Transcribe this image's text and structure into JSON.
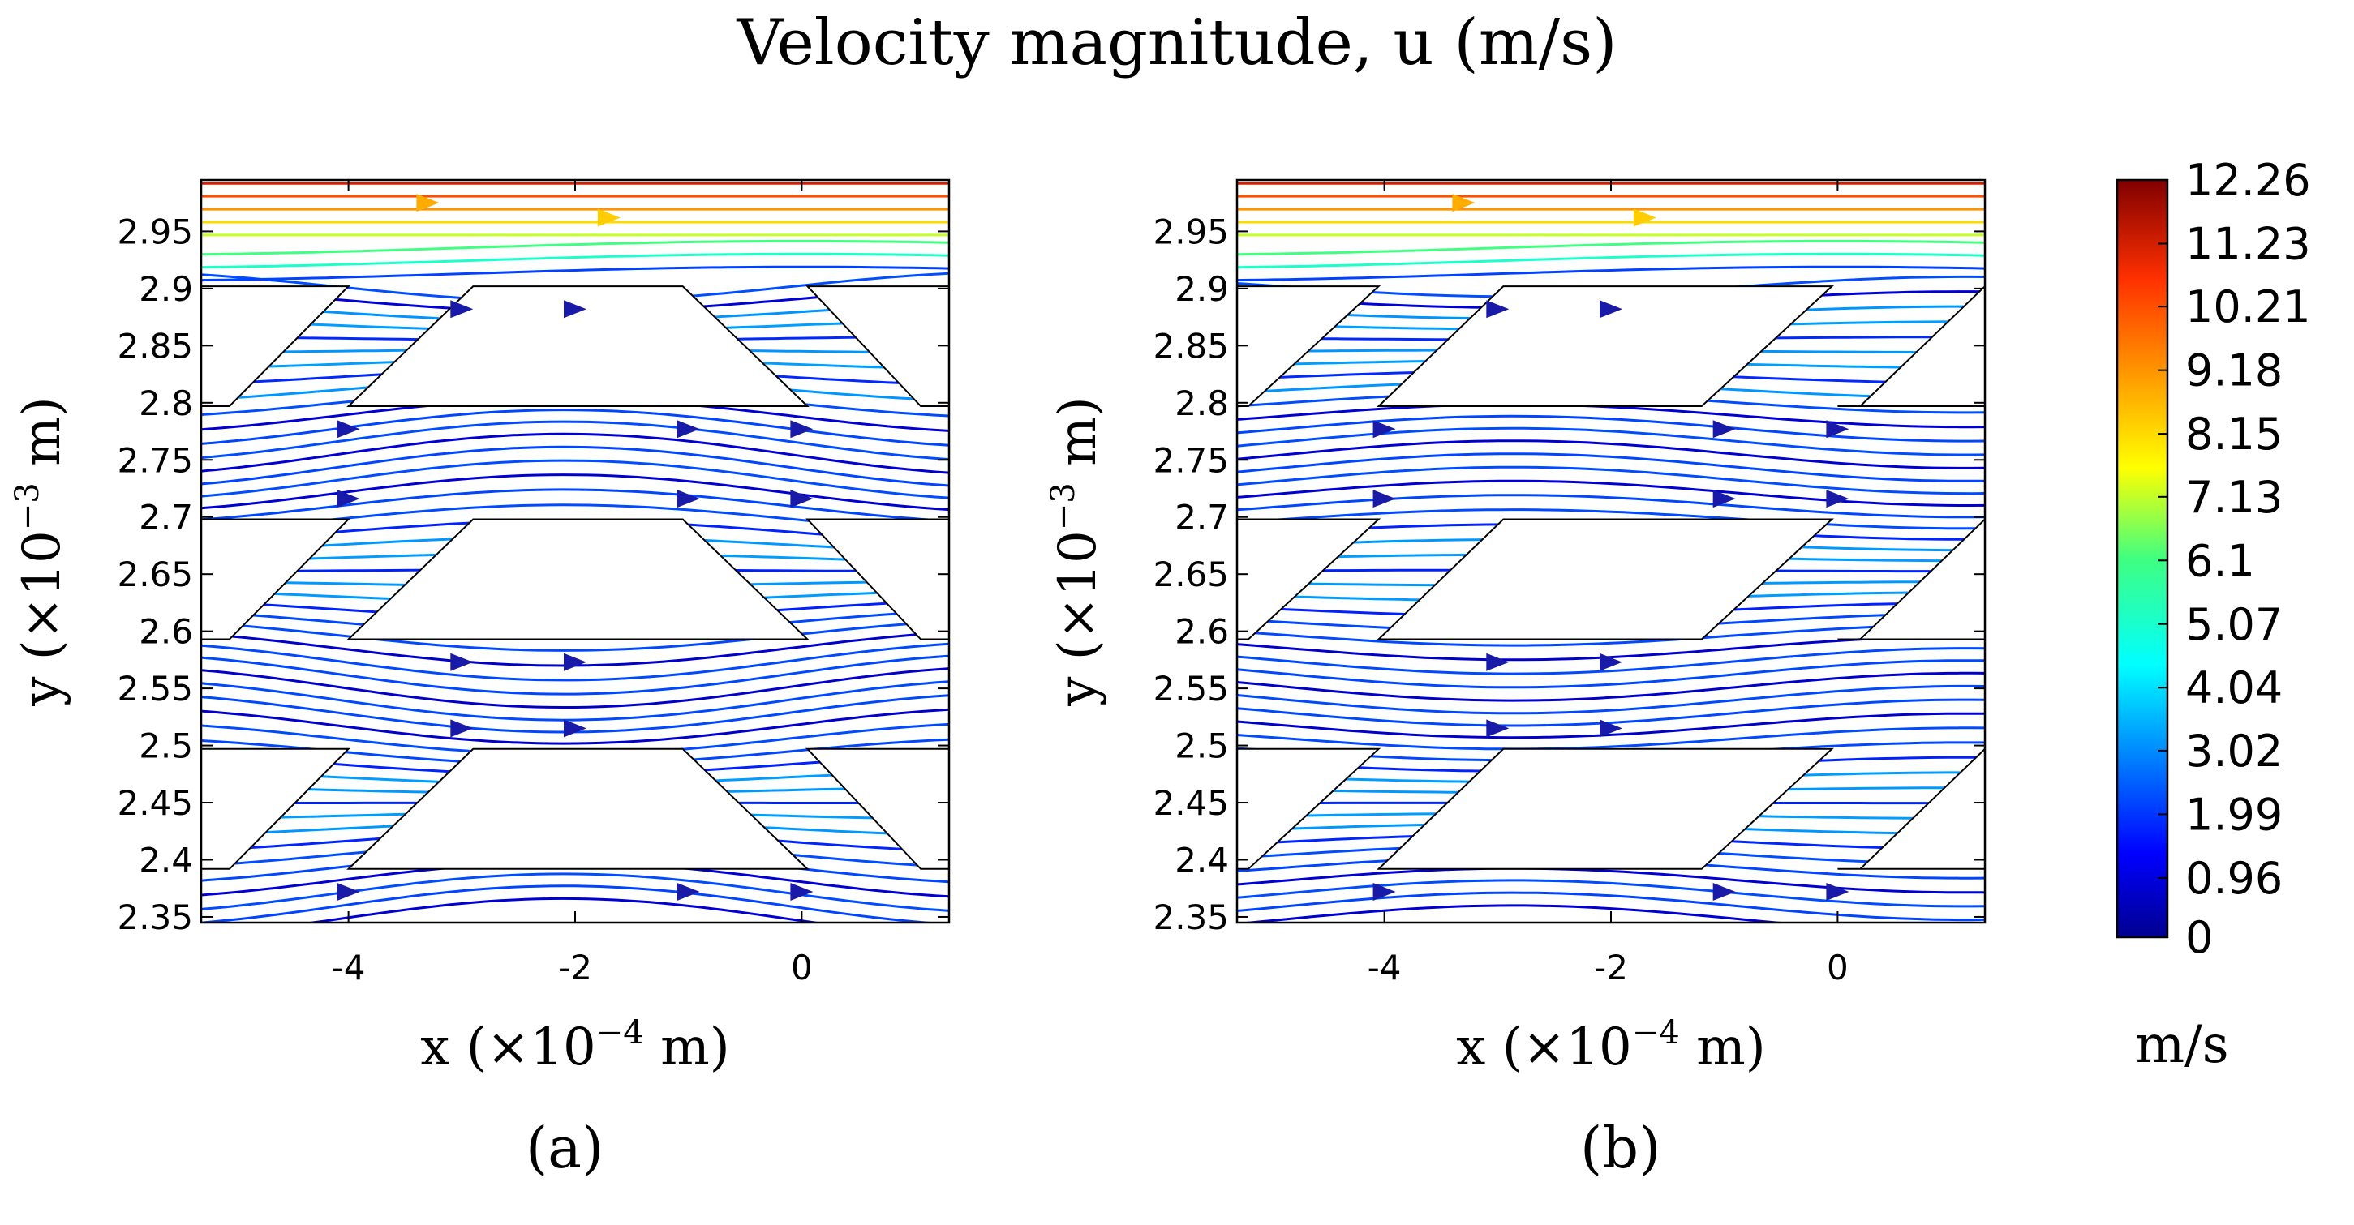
{
  "title": "Velocity magnitude, u (m/s)",
  "chart_data": [
    {
      "type": "streamline",
      "panel": "(a)",
      "xlabel_main": "x (×10",
      "xlabel_exp": "−4",
      "xlabel_tail": " m)",
      "ylabel_main": "y (×10",
      "ylabel_exp": "−3",
      "ylabel_tail": " m)",
      "xlim": [
        -5.3,
        1.3
      ],
      "ylim": [
        2.345,
        2.995
      ],
      "x_ticks": [
        -4,
        -2,
        0
      ],
      "x_tick_labels": [
        "-4",
        "-2",
        "0"
      ],
      "y_ticks": [
        2.35,
        2.4,
        2.45,
        2.5,
        2.55,
        2.6,
        2.65,
        2.7,
        2.75,
        2.8,
        2.85,
        2.9,
        2.95
      ],
      "y_tick_labels": [
        "2.35",
        "2.4",
        "2.45",
        "2.5",
        "2.55",
        "2.6",
        "2.65",
        "2.7",
        "2.75",
        "2.8",
        "2.85",
        "2.9",
        "2.95"
      ],
      "obstacles": "trapezoid",
      "obstacle_rows_y": [
        [
          2.392,
          2.497
        ],
        [
          2.593,
          2.698
        ],
        [
          2.797,
          2.902
        ]
      ]
    },
    {
      "type": "streamline",
      "panel": "(b)",
      "xlabel_main": "x (×10",
      "xlabel_exp": "−4",
      "xlabel_tail": " m)",
      "ylabel_main": "y (×10",
      "ylabel_exp": "−3",
      "ylabel_tail": " m)",
      "xlim": [
        -5.3,
        1.3
      ],
      "ylim": [
        2.345,
        2.995
      ],
      "x_ticks": [
        -4,
        -2,
        0
      ],
      "x_tick_labels": [
        "-4",
        "-2",
        "0"
      ],
      "y_ticks": [
        2.35,
        2.4,
        2.45,
        2.5,
        2.55,
        2.6,
        2.65,
        2.7,
        2.75,
        2.8,
        2.85,
        2.9,
        2.95
      ],
      "y_tick_labels": [
        "2.35",
        "2.4",
        "2.45",
        "2.5",
        "2.55",
        "2.6",
        "2.65",
        "2.7",
        "2.75",
        "2.8",
        "2.85",
        "2.9",
        "2.95"
      ],
      "obstacles": "parallelogram",
      "obstacle_rows_y": [
        [
          2.392,
          2.497
        ],
        [
          2.593,
          2.698
        ],
        [
          2.797,
          2.902
        ]
      ]
    }
  ],
  "colorbar": {
    "min": 0,
    "max": 12.26,
    "tick_labels": [
      "12.26",
      "11.23",
      "10.21",
      "9.18",
      "8.15",
      "7.13",
      "6.1",
      "5.07",
      "4.04",
      "3.02",
      "1.99",
      "0.96",
      "0"
    ],
    "unit": "m/s",
    "colormap": "jet"
  },
  "colors": {
    "low": "#00008f",
    "mid": "#00ffff",
    "high": "#800000"
  }
}
